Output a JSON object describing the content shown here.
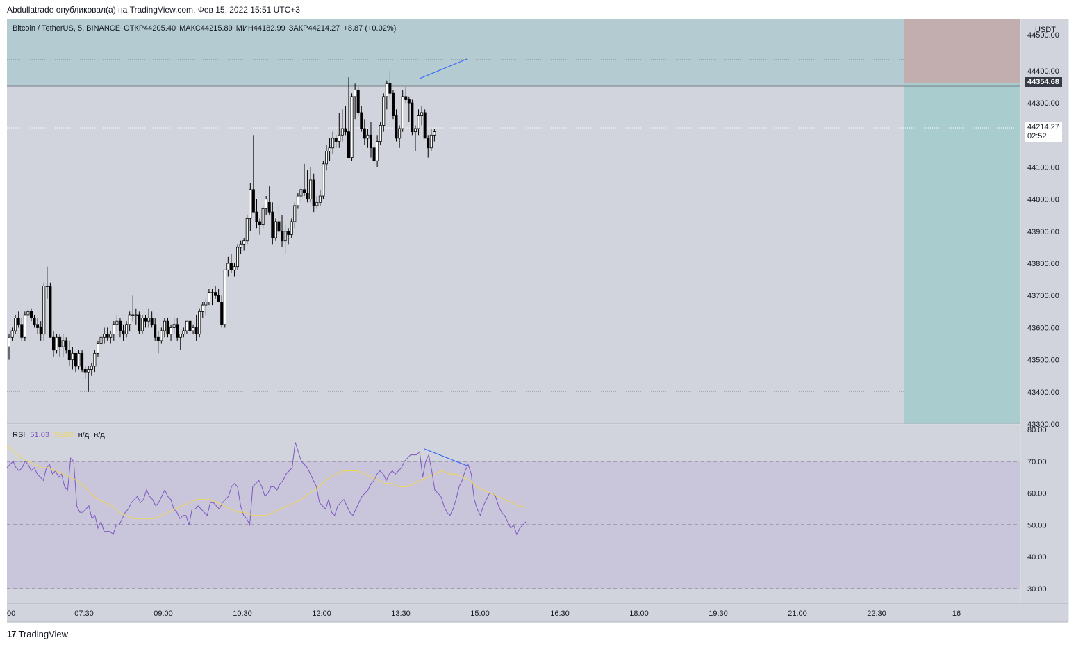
{
  "header": {
    "attribution": "Abdullatrade опубликовал(а) на TradingView.com, Фев 15, 2022 15:51 UTC+3"
  },
  "legend": {
    "symbol": "Bitcoin / TetherUS, 5, BINANCE",
    "open": "ОТКР44205.40",
    "high": "МАКС44215.89",
    "low": "МИН44182.99",
    "close": "ЗАКР44214.27",
    "change": "+8.87 (+0.02%)"
  },
  "rsi_legend": {
    "name": "RSI",
    "value": "51.03",
    "ma_value": "55.63",
    "na1": "н/д",
    "na2": "н/д"
  },
  "price_axis": {
    "currency": "USDT",
    "ticks": [
      "44500.00",
      "44400.00",
      "44300.00",
      "44100.00",
      "44000.00",
      "43900.00",
      "43800.00",
      "43700.00",
      "43600.00",
      "43500.00",
      "43400.00",
      "43300.00"
    ],
    "level_tag": "44354.68",
    "last_price": "44214.27",
    "countdown": "02:52"
  },
  "rsi_axis": {
    "ticks": [
      "80.00",
      "70.00",
      "60.00",
      "50.00",
      "40.00",
      "30.00"
    ]
  },
  "time_axis": {
    "ticks": [
      "00",
      "07:30",
      "09:00",
      "10:30",
      "12:00",
      "13:30",
      "15:00",
      "16:30",
      "18:00",
      "19:30",
      "21:00",
      "22:30",
      "16"
    ]
  },
  "footer": {
    "logo_glyph": "17",
    "brand": "TradingView"
  },
  "colors": {
    "pane_bg": "#d1d4dc",
    "profit_zone": "#a9cccf",
    "loss_zone": "#c2aeae",
    "rsi_band": "#c9c6db",
    "rsi_line": "#7e57c2",
    "rsi_ma": "#f3d54e",
    "divergence": "#2962ff"
  },
  "chart_data": [
    {
      "type": "candlestick",
      "title": "Bitcoin / TetherUS, 5, BINANCE",
      "ylabel": "USDT",
      "ylim": [
        43300,
        44560
      ],
      "x_ticks": [
        "00",
        "07:30",
        "09:00",
        "10:30",
        "12:00",
        "13:30",
        "15:00",
        "16:30",
        "18:00",
        "19:30",
        "21:00",
        "22:30",
        "16"
      ],
      "candles": [
        [
          43540,
          43580,
          43500,
          43570
        ],
        [
          43570,
          43600,
          43560,
          43590
        ],
        [
          43590,
          43640,
          43580,
          43630
        ],
        [
          43630,
          43650,
          43600,
          43610
        ],
        [
          43610,
          43630,
          43560,
          43570
        ],
        [
          43570,
          43650,
          43560,
          43640
        ],
        [
          43640,
          43660,
          43620,
          43650
        ],
        [
          43650,
          43660,
          43620,
          43630
        ],
        [
          43630,
          43640,
          43600,
          43610
        ],
        [
          43610,
          43630,
          43580,
          43600
        ],
        [
          43600,
          43620,
          43560,
          43580
        ],
        [
          43580,
          43740,
          43560,
          43730
        ],
        [
          43730,
          43790,
          43690,
          43730
        ],
        [
          43730,
          43740,
          43570,
          43570
        ],
        [
          43570,
          43590,
          43510,
          43530
        ],
        [
          43530,
          43580,
          43520,
          43570
        ],
        [
          43570,
          43580,
          43510,
          43540
        ],
        [
          43540,
          43580,
          43510,
          43560
        ],
        [
          43560,
          43570,
          43520,
          43530
        ],
        [
          43530,
          43560,
          43480,
          43500
        ],
        [
          43500,
          43540,
          43470,
          43520
        ],
        [
          43520,
          43520,
          43460,
          43480
        ],
        [
          43480,
          43530,
          43470,
          43520
        ],
        [
          43520,
          43530,
          43460,
          43470
        ],
        [
          43470,
          43480,
          43440,
          43460
        ],
        [
          43460,
          43480,
          43400,
          43470
        ],
        [
          43470,
          43490,
          43450,
          43480
        ],
        [
          43480,
          43530,
          43460,
          43520
        ],
        [
          43520,
          43560,
          43510,
          43550
        ],
        [
          43550,
          43580,
          43530,
          43570
        ],
        [
          43570,
          43600,
          43550,
          43580
        ],
        [
          43580,
          43600,
          43560,
          43570
        ],
        [
          43570,
          43590,
          43550,
          43580
        ],
        [
          43580,
          43620,
          43560,
          43610
        ],
        [
          43610,
          43640,
          43590,
          43620
        ],
        [
          43620,
          43630,
          43570,
          43590
        ],
        [
          43590,
          43610,
          43560,
          43580
        ],
        [
          43580,
          43620,
          43570,
          43610
        ],
        [
          43610,
          43650,
          43590,
          43640
        ],
        [
          43640,
          43700,
          43620,
          43640
        ],
        [
          43640,
          43660,
          43610,
          43640
        ],
        [
          43640,
          43650,
          43580,
          43590
        ],
        [
          43590,
          43640,
          43580,
          43630
        ],
        [
          43630,
          43640,
          43600,
          43620
        ],
        [
          43620,
          43660,
          43600,
          43630
        ],
        [
          43630,
          43650,
          43600,
          43610
        ],
        [
          43610,
          43630,
          43560,
          43570
        ],
        [
          43570,
          43590,
          43520,
          43560
        ],
        [
          43560,
          43600,
          43550,
          43590
        ],
        [
          43590,
          43630,
          43570,
          43620
        ],
        [
          43620,
          43630,
          43570,
          43580
        ],
        [
          43580,
          43610,
          43560,
          43600
        ],
        [
          43600,
          43630,
          43580,
          43610
        ],
        [
          43610,
          43630,
          43560,
          43570
        ],
        [
          43570,
          43580,
          43530,
          43580
        ],
        [
          43580,
          43600,
          43570,
          43590
        ],
        [
          43590,
          43620,
          43580,
          43620
        ],
        [
          43620,
          43630,
          43580,
          43590
        ],
        [
          43590,
          43610,
          43580,
          43600
        ],
        [
          43600,
          43640,
          43560,
          43580
        ],
        [
          43580,
          43660,
          43570,
          43650
        ],
        [
          43650,
          43680,
          43630,
          43670
        ],
        [
          43670,
          43690,
          43640,
          43680
        ],
        [
          43680,
          43720,
          43670,
          43710
        ],
        [
          43710,
          43720,
          43670,
          43710
        ],
        [
          43710,
          43730,
          43690,
          43700
        ],
        [
          43700,
          43720,
          43680,
          43680
        ],
        [
          43680,
          43700,
          43600,
          43610
        ],
        [
          43610,
          43780,
          43600,
          43780
        ],
        [
          43780,
          43820,
          43760,
          43800
        ],
        [
          43800,
          43830,
          43770,
          43780
        ],
        [
          43780,
          43800,
          43760,
          43790
        ],
        [
          43790,
          43860,
          43780,
          43850
        ],
        [
          43850,
          43870,
          43830,
          43860
        ],
        [
          43860,
          43880,
          43840,
          43870
        ],
        [
          43870,
          43950,
          43860,
          43940
        ],
        [
          43940,
          44050,
          43900,
          44030
        ],
        [
          44030,
          44200,
          43960,
          43960
        ],
        [
          43960,
          44000,
          43910,
          43930
        ],
        [
          43930,
          43940,
          43890,
          43920
        ],
        [
          43920,
          43980,
          43910,
          43970
        ],
        [
          43970,
          44010,
          43950,
          44000
        ],
        [
          43990,
          44040,
          43950,
          43960
        ],
        [
          43960,
          43990,
          43860,
          43880
        ],
        [
          43880,
          43940,
          43870,
          43930
        ],
        [
          43930,
          43980,
          43890,
          43900
        ],
        [
          43900,
          43950,
          43850,
          43870
        ],
        [
          43870,
          43920,
          43830,
          43900
        ],
        [
          43900,
          43910,
          43860,
          43890
        ],
        [
          43890,
          43940,
          43880,
          43930
        ],
        [
          43930,
          43990,
          43910,
          43980
        ],
        [
          43980,
          44020,
          43970,
          44010
        ],
        [
          44010,
          44040,
          43990,
          44030
        ],
        [
          44030,
          44110,
          44010,
          44020
        ],
        [
          44020,
          44090,
          43990,
          44000
        ],
        [
          44000,
          44100,
          43990,
          44060
        ],
        [
          44060,
          44080,
          43960,
          43980
        ],
        [
          43980,
          44010,
          43970,
          43990
        ],
        [
          43990,
          44030,
          43980,
          44010
        ],
        [
          44010,
          44120,
          44000,
          44110
        ],
        [
          44110,
          44170,
          44090,
          44150
        ],
        [
          44150,
          44190,
          44120,
          44160
        ],
        [
          44160,
          44210,
          44140,
          44190
        ],
        [
          44190,
          44200,
          44160,
          44180
        ],
        [
          44180,
          44270,
          44160,
          44200
        ],
        [
          44200,
          44280,
          44180,
          44220
        ],
        [
          44220,
          44290,
          44200,
          44210
        ],
        [
          44210,
          44380,
          44130,
          44130
        ],
        [
          44130,
          44330,
          44120,
          44320
        ],
        [
          44320,
          44360,
          44250,
          44340
        ],
        [
          44340,
          44350,
          44260,
          44270
        ],
        [
          44270,
          44290,
          44210,
          44220
        ],
        [
          44220,
          44250,
          44170,
          44190
        ],
        [
          44190,
          44220,
          44160,
          44200
        ],
        [
          44200,
          44240,
          44130,
          44160
        ],
        [
          44160,
          44170,
          44110,
          44120
        ],
        [
          44120,
          44200,
          44100,
          44180
        ],
        [
          44180,
          44240,
          44170,
          44230
        ],
        [
          44230,
          44330,
          44210,
          44320
        ],
        [
          44320,
          44370,
          44280,
          44360
        ],
        [
          44360,
          44400,
          44310,
          44330
        ],
        [
          44330,
          44340,
          44250,
          44260
        ],
        [
          44260,
          44280,
          44180,
          44190
        ],
        [
          44190,
          44230,
          44160,
          44220
        ],
        [
          44220,
          44340,
          44210,
          44320
        ],
        [
          44320,
          44350,
          44300,
          44310
        ],
        [
          44310,
          44320,
          44240,
          44300
        ],
        [
          44300,
          44310,
          44200,
          44210
        ],
        [
          44210,
          44230,
          44150,
          44220
        ],
        [
          44220,
          44280,
          44200,
          44260
        ],
        [
          44260,
          44290,
          44230,
          44270
        ],
        [
          44270,
          44280,
          44190,
          44190
        ],
        [
          44190,
          44200,
          44130,
          44160
        ],
        [
          44160,
          44220,
          44150,
          44200
        ],
        [
          44200,
          44220,
          44180,
          44210
        ]
      ]
    },
    {
      "type": "line",
      "title": "RSI",
      "ylim": [
        27,
        80
      ],
      "series": [
        {
          "name": "RSI",
          "values": [
            68,
            69,
            70,
            68,
            67,
            68,
            70,
            69,
            67,
            68,
            66,
            65,
            64,
            68,
            69,
            66,
            67,
            65,
            66,
            62,
            61,
            71,
            70,
            56,
            54,
            54,
            55,
            56,
            52,
            53,
            49,
            51,
            48,
            48,
            48,
            47,
            50,
            50,
            52,
            54,
            55,
            57,
            58,
            59,
            57,
            58,
            61,
            59,
            58,
            56,
            57,
            59,
            61,
            59,
            58,
            55,
            54,
            52,
            53,
            53,
            50,
            55,
            55,
            56,
            55,
            54,
            53,
            57,
            57,
            56,
            55,
            57,
            58,
            59,
            62,
            63,
            62,
            56,
            53,
            52,
            50,
            62,
            63,
            64,
            62,
            59,
            60,
            62,
            62,
            61,
            63,
            64,
            66,
            67,
            68,
            76,
            73,
            70,
            69,
            68,
            66,
            64,
            62,
            57,
            56,
            55,
            58,
            54,
            53,
            56,
            57,
            58,
            56,
            54,
            53,
            55,
            57,
            59,
            60,
            61,
            63,
            64,
            66,
            67,
            66,
            64,
            66,
            67,
            66,
            67,
            68,
            70,
            71,
            72,
            72,
            72,
            73,
            65,
            70,
            72,
            67,
            61,
            60,
            59,
            56,
            54,
            53,
            55,
            58,
            62,
            64,
            67,
            69,
            66,
            58,
            55,
            53,
            56,
            58,
            60,
            60,
            59,
            56,
            54,
            53,
            51,
            49,
            50,
            47,
            49,
            50,
            51
          ],
          "last": 51.03
        },
        {
          "name": "RSI MA",
          "values": [
            75,
            73,
            71,
            70,
            69,
            68,
            68,
            67,
            66,
            65,
            64,
            62,
            60,
            58,
            57,
            56,
            54,
            53,
            52,
            52,
            52,
            52,
            53,
            54,
            55,
            56,
            57,
            58,
            58,
            58,
            57,
            56,
            55,
            54,
            54,
            53,
            53,
            53,
            54,
            55,
            56,
            57,
            58,
            60,
            61,
            63,
            65,
            66,
            67,
            67,
            67,
            66,
            65,
            64,
            63,
            63,
            62,
            62,
            63,
            64,
            65,
            66,
            67,
            66,
            66,
            65,
            64,
            62,
            61,
            60,
            59,
            58,
            57,
            56,
            55.63
          ],
          "last": 55.63
        }
      ],
      "bands": [
        70,
        50,
        30
      ]
    }
  ]
}
